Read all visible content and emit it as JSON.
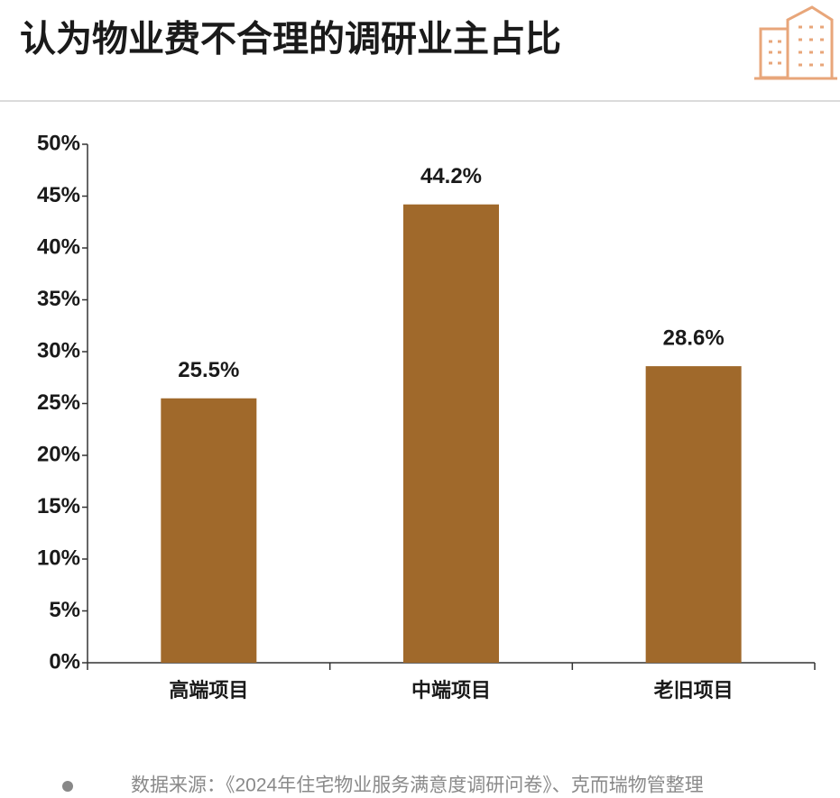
{
  "chart_data": {
    "type": "bar",
    "title": "认为物业费不合理的调研业主占比",
    "categories": [
      "高端项目",
      "中端项目",
      "老旧项目"
    ],
    "values": [
      25.5,
      44.2,
      28.6
    ],
    "value_labels": [
      "25.5%",
      "44.2%",
      "28.6%"
    ],
    "color": "#a0692b",
    "ylim": [
      0,
      50
    ],
    "yticks": [
      {
        "value": 0,
        "label": "0%"
      },
      {
        "value": 5,
        "label": "5%"
      },
      {
        "value": 10,
        "label": "10%"
      },
      {
        "value": 15,
        "label": "15%"
      },
      {
        "value": 20,
        "label": "20%"
      },
      {
        "value": 25,
        "label": "25%"
      },
      {
        "value": 30,
        "label": "30%"
      },
      {
        "value": 35,
        "label": "35%"
      },
      {
        "value": 40,
        "label": "40%"
      },
      {
        "value": 45,
        "label": "45%"
      },
      {
        "value": 50,
        "label": "50%"
      }
    ],
    "grid": false,
    "source": "数据来源：《2024年住宅物业服务满意度调研问卷》、克而瑞物管整理"
  }
}
